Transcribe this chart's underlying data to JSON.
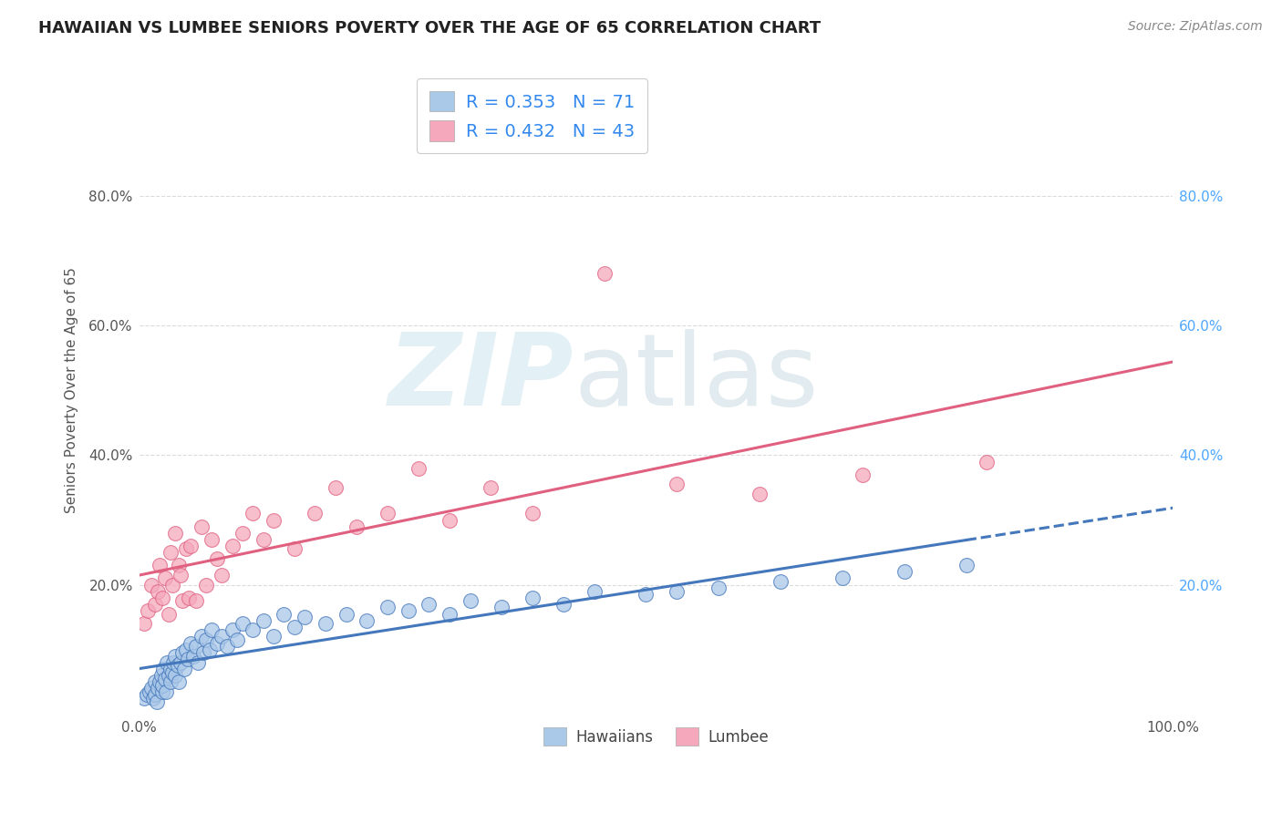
{
  "title": "HAWAIIAN VS LUMBEE SENIORS POVERTY OVER THE AGE OF 65 CORRELATION CHART",
  "source": "Source: ZipAtlas.com",
  "ylabel": "Seniors Poverty Over the Age of 65",
  "xlim": [
    0,
    1.0
  ],
  "ylim": [
    0,
    1.0
  ],
  "ytick_positions": [
    0.2,
    0.4,
    0.6,
    0.8
  ],
  "ytick_labels": [
    "20.0%",
    "40.0%",
    "60.0%",
    "80.0%"
  ],
  "grid_color": "#cccccc",
  "background_color": "#ffffff",
  "hawaiian_color": "#aac8e8",
  "lumbee_color": "#f5a8bc",
  "hawaiian_line_color": "#4477bb",
  "lumbee_line_color": "#e06080",
  "legend_hawaiian_label": "R = 0.353   N = 71",
  "legend_lumbee_label": "R = 0.432   N = 43",
  "hawaiian_x": [
    0.005,
    0.007,
    0.01,
    0.012,
    0.013,
    0.015,
    0.015,
    0.017,
    0.018,
    0.02,
    0.021,
    0.022,
    0.022,
    0.023,
    0.025,
    0.026,
    0.027,
    0.028,
    0.03,
    0.03,
    0.032,
    0.033,
    0.035,
    0.035,
    0.037,
    0.038,
    0.04,
    0.042,
    0.043,
    0.045,
    0.047,
    0.05,
    0.052,
    0.055,
    0.057,
    0.06,
    0.062,
    0.065,
    0.068,
    0.07,
    0.075,
    0.08,
    0.085,
    0.09,
    0.095,
    0.1,
    0.11,
    0.12,
    0.13,
    0.14,
    0.15,
    0.16,
    0.18,
    0.2,
    0.22,
    0.24,
    0.26,
    0.28,
    0.3,
    0.32,
    0.35,
    0.38,
    0.41,
    0.44,
    0.49,
    0.52,
    0.56,
    0.62,
    0.68,
    0.74,
    0.8
  ],
  "hawaiian_y": [
    0.025,
    0.03,
    0.035,
    0.04,
    0.025,
    0.03,
    0.05,
    0.02,
    0.04,
    0.05,
    0.06,
    0.035,
    0.045,
    0.07,
    0.055,
    0.035,
    0.08,
    0.06,
    0.05,
    0.07,
    0.065,
    0.08,
    0.06,
    0.09,
    0.075,
    0.05,
    0.08,
    0.095,
    0.07,
    0.1,
    0.085,
    0.11,
    0.09,
    0.105,
    0.08,
    0.12,
    0.095,
    0.115,
    0.1,
    0.13,
    0.11,
    0.12,
    0.105,
    0.13,
    0.115,
    0.14,
    0.13,
    0.145,
    0.12,
    0.155,
    0.135,
    0.15,
    0.14,
    0.155,
    0.145,
    0.165,
    0.16,
    0.17,
    0.155,
    0.175,
    0.165,
    0.18,
    0.17,
    0.19,
    0.185,
    0.19,
    0.195,
    0.205,
    0.21,
    0.22,
    0.23
  ],
  "lumbee_x": [
    0.005,
    0.008,
    0.012,
    0.015,
    0.018,
    0.02,
    0.022,
    0.025,
    0.028,
    0.03,
    0.032,
    0.035,
    0.038,
    0.04,
    0.042,
    0.045,
    0.048,
    0.05,
    0.055,
    0.06,
    0.065,
    0.07,
    0.075,
    0.08,
    0.09,
    0.1,
    0.11,
    0.12,
    0.13,
    0.15,
    0.17,
    0.19,
    0.21,
    0.24,
    0.27,
    0.3,
    0.34,
    0.38,
    0.45,
    0.52,
    0.6,
    0.7,
    0.82
  ],
  "lumbee_y": [
    0.14,
    0.16,
    0.2,
    0.17,
    0.19,
    0.23,
    0.18,
    0.21,
    0.155,
    0.25,
    0.2,
    0.28,
    0.23,
    0.215,
    0.175,
    0.255,
    0.18,
    0.26,
    0.175,
    0.29,
    0.2,
    0.27,
    0.24,
    0.215,
    0.26,
    0.28,
    0.31,
    0.27,
    0.3,
    0.255,
    0.31,
    0.35,
    0.29,
    0.31,
    0.38,
    0.3,
    0.35,
    0.31,
    0.68,
    0.355,
    0.34,
    0.37,
    0.39
  ]
}
